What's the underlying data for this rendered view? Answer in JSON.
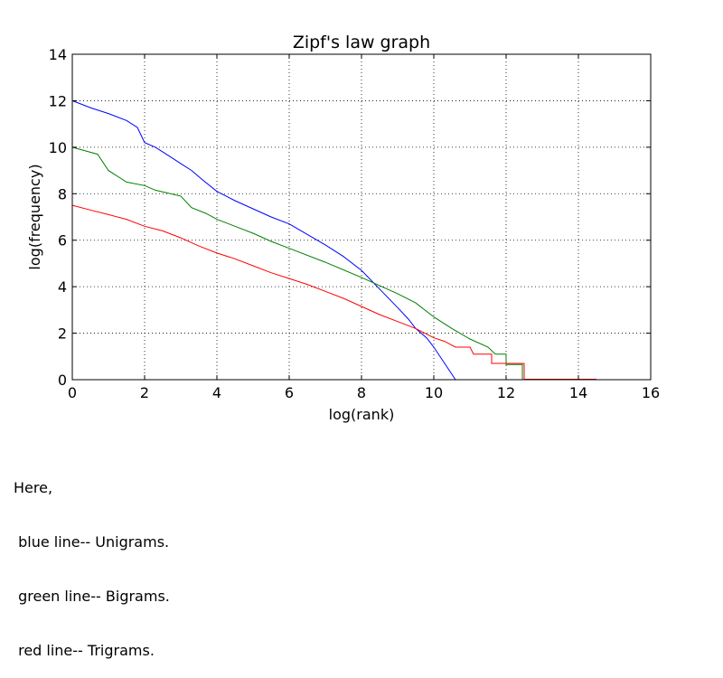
{
  "chart_data": {
    "type": "line",
    "title": "Zipf's law graph",
    "xlabel": "log(rank)",
    "ylabel": "log(frequency)",
    "xlim": [
      0,
      16
    ],
    "ylim": [
      0,
      14
    ],
    "xticks": [
      "0",
      "2",
      "4",
      "6",
      "8",
      "10",
      "12",
      "14",
      "16"
    ],
    "yticks": [
      "0",
      "2",
      "4",
      "6",
      "8",
      "10",
      "12",
      "14"
    ],
    "grid": true,
    "series": [
      {
        "color": "#0000ff",
        "points": [
          [
            0,
            12.0
          ],
          [
            0.5,
            11.7
          ],
          [
            1.0,
            11.45
          ],
          [
            1.5,
            11.15
          ],
          [
            1.8,
            10.85
          ],
          [
            2.0,
            10.2
          ],
          [
            2.3,
            10.0
          ],
          [
            2.6,
            9.7
          ],
          [
            3.0,
            9.3
          ],
          [
            3.3,
            9.0
          ],
          [
            3.6,
            8.6
          ],
          [
            4.0,
            8.1
          ],
          [
            4.5,
            7.7
          ],
          [
            5.0,
            7.35
          ],
          [
            5.5,
            7.0
          ],
          [
            6.0,
            6.7
          ],
          [
            6.5,
            6.25
          ],
          [
            7.0,
            5.8
          ],
          [
            7.5,
            5.3
          ],
          [
            8.0,
            4.7
          ],
          [
            8.5,
            3.9
          ],
          [
            9.0,
            3.1
          ],
          [
            9.3,
            2.6
          ],
          [
            9.5,
            2.2
          ],
          [
            9.8,
            1.8
          ],
          [
            10.0,
            1.4
          ],
          [
            10.3,
            0.7
          ],
          [
            10.6,
            0.0
          ],
          [
            11.2,
            0.0
          ]
        ]
      },
      {
        "color": "#008000",
        "points": [
          [
            0,
            10.0
          ],
          [
            0.7,
            9.7
          ],
          [
            1.0,
            9.0
          ],
          [
            1.5,
            8.5
          ],
          [
            2.0,
            8.35
          ],
          [
            2.3,
            8.15
          ],
          [
            3.0,
            7.9
          ],
          [
            3.3,
            7.4
          ],
          [
            3.7,
            7.15
          ],
          [
            4.0,
            6.9
          ],
          [
            4.5,
            6.6
          ],
          [
            5.0,
            6.3
          ],
          [
            5.5,
            5.95
          ],
          [
            6.0,
            5.65
          ],
          [
            7.0,
            5.05
          ],
          [
            8.0,
            4.4
          ],
          [
            9.0,
            3.7
          ],
          [
            9.5,
            3.3
          ],
          [
            10.0,
            2.7
          ],
          [
            10.5,
            2.2
          ],
          [
            11.0,
            1.75
          ],
          [
            11.5,
            1.4
          ],
          [
            11.7,
            1.1
          ],
          [
            12.0,
            1.1
          ],
          [
            12.0,
            0.65
          ],
          [
            12.45,
            0.65
          ],
          [
            12.45,
            0.0
          ],
          [
            12.6,
            0.0
          ]
        ]
      },
      {
        "color": "#ff0000",
        "points": [
          [
            0,
            7.5
          ],
          [
            0.5,
            7.3
          ],
          [
            1.0,
            7.1
          ],
          [
            1.5,
            6.9
          ],
          [
            2.0,
            6.6
          ],
          [
            2.5,
            6.4
          ],
          [
            3.0,
            6.1
          ],
          [
            3.5,
            5.75
          ],
          [
            4.0,
            5.45
          ],
          [
            4.5,
            5.2
          ],
          [
            5.0,
            4.9
          ],
          [
            5.5,
            4.6
          ],
          [
            6.0,
            4.35
          ],
          [
            6.5,
            4.1
          ],
          [
            7.0,
            3.8
          ],
          [
            7.5,
            3.5
          ],
          [
            8.0,
            3.15
          ],
          [
            8.5,
            2.8
          ],
          [
            9.0,
            2.5
          ],
          [
            9.5,
            2.2
          ],
          [
            10.0,
            1.8
          ],
          [
            10.3,
            1.65
          ],
          [
            10.6,
            1.4
          ],
          [
            11.0,
            1.4
          ],
          [
            11.1,
            1.1
          ],
          [
            11.6,
            1.1
          ],
          [
            11.6,
            0.7
          ],
          [
            12.5,
            0.7
          ],
          [
            12.5,
            0.02
          ],
          [
            14.5,
            0.02
          ]
        ]
      }
    ]
  },
  "caption": {
    "lines": [
      "Here,",
      " blue line-- Unigrams.",
      " green line-- Bigrams.",
      " red line-- Trigrams."
    ]
  }
}
